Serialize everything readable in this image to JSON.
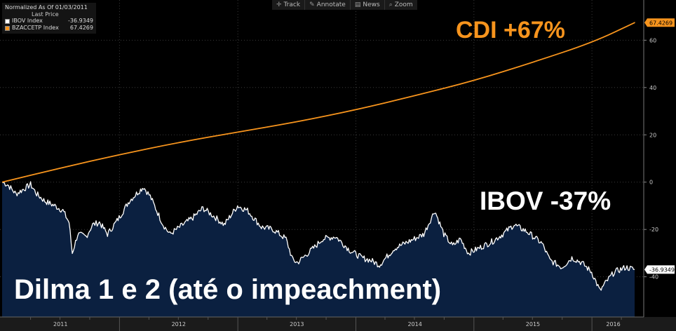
{
  "toolbar": {
    "items": [
      {
        "icon": "crosshair-icon",
        "glyph": "✛",
        "label": "Track"
      },
      {
        "icon": "pencil-icon",
        "glyph": "✎",
        "label": "Annotate"
      },
      {
        "icon": "news-icon",
        "glyph": "▤",
        "label": "News"
      },
      {
        "icon": "zoom-icon",
        "glyph": "⌕",
        "label": "Zoom"
      }
    ]
  },
  "legend": {
    "heading": "Normalized As Of 01/03/2011",
    "subheading": "Last Price",
    "items": [
      {
        "name": "IBOV Index",
        "value": "-36.9349",
        "color": "#ffffff"
      },
      {
        "name": "BZACCETP Index",
        "value": "67.4269",
        "color": "#f7941d"
      }
    ]
  },
  "annotations": {
    "cdi": "CDI +67%",
    "ibov": "IBOV -37%",
    "period": "Dilma 1 e 2 (até o impeachment)"
  },
  "colors": {
    "background": "#000000",
    "cdi_line": "#f7941d",
    "ibov_line": "#ffffff",
    "ibov_fill": "#0b2040",
    "axis_label_cdi_bg": "#f7941d",
    "axis_label_ibov_bg": "#ffffff"
  },
  "chart_data": {
    "type": "line",
    "x_range": [
      "2011-01-03",
      "2016-05-12"
    ],
    "x_ticks": [
      "2011",
      "2012",
      "2013",
      "2014",
      "2015",
      "2016"
    ],
    "y_ticks": [
      60,
      40,
      20,
      0,
      -20,
      -40
    ],
    "ylim": [
      -57,
      77
    ],
    "grid": true,
    "legend_position": "top-left",
    "series": [
      {
        "name": "IBOV Index",
        "last_price": -36.9349,
        "area_fill": true,
        "points": [
          [
            "2011-01-03",
            0
          ],
          [
            "2011-01-20",
            -1
          ],
          [
            "2011-02-15",
            -5
          ],
          [
            "2011-03-10",
            -3
          ],
          [
            "2011-04-01",
            -1
          ],
          [
            "2011-04-20",
            -5
          ],
          [
            "2011-05-15",
            -8
          ],
          [
            "2011-06-15",
            -10
          ],
          [
            "2011-07-10",
            -12
          ],
          [
            "2011-07-29",
            -17
          ],
          [
            "2011-08-08",
            -30
          ],
          [
            "2011-08-25",
            -22
          ],
          [
            "2011-09-20",
            -23
          ],
          [
            "2011-10-10",
            -18
          ],
          [
            "2011-10-31",
            -17
          ],
          [
            "2011-11-25",
            -22
          ],
          [
            "2011-12-31",
            -15
          ],
          [
            "2012-01-31",
            -8
          ],
          [
            "2012-02-29",
            -4
          ],
          [
            "2012-03-15",
            -2
          ],
          [
            "2012-04-05",
            -6
          ],
          [
            "2012-05-15",
            -18
          ],
          [
            "2012-06-05",
            -22
          ],
          [
            "2012-07-15",
            -18
          ],
          [
            "2012-08-15",
            -15
          ],
          [
            "2012-09-15",
            -11
          ],
          [
            "2012-10-15",
            -14
          ],
          [
            "2012-11-20",
            -18
          ],
          [
            "2012-12-31",
            -10
          ],
          [
            "2013-01-31",
            -12
          ],
          [
            "2013-03-15",
            -19
          ],
          [
            "2013-04-20",
            -20
          ],
          [
            "2013-05-30",
            -24
          ],
          [
            "2013-06-20",
            -33
          ],
          [
            "2013-07-05",
            -34
          ],
          [
            "2013-08-30",
            -27
          ],
          [
            "2013-09-20",
            -24
          ],
          [
            "2013-10-30",
            -23
          ],
          [
            "2013-12-15",
            -29
          ],
          [
            "2014-01-20",
            -32
          ],
          [
            "2014-02-15",
            -33
          ],
          [
            "2014-03-15",
            -35
          ],
          [
            "2014-04-30",
            -28
          ],
          [
            "2014-06-15",
            -25
          ],
          [
            "2014-07-30",
            -22
          ],
          [
            "2014-09-02",
            -12
          ],
          [
            "2014-09-30",
            -22
          ],
          [
            "2014-10-27",
            -27
          ],
          [
            "2014-11-20",
            -24
          ],
          [
            "2014-12-15",
            -30
          ],
          [
            "2015-01-15",
            -28
          ],
          [
            "2015-02-28",
            -25
          ],
          [
            "2015-03-31",
            -22
          ],
          [
            "2015-05-05",
            -18
          ],
          [
            "2015-06-15",
            -21
          ],
          [
            "2015-07-31",
            -26
          ],
          [
            "2015-08-24",
            -33
          ],
          [
            "2015-09-30",
            -36
          ],
          [
            "2015-10-31",
            -32
          ],
          [
            "2015-11-30",
            -34
          ],
          [
            "2015-12-31",
            -38
          ],
          [
            "2016-01-26",
            -46
          ],
          [
            "2016-02-15",
            -42
          ],
          [
            "2016-03-10",
            -38
          ],
          [
            "2016-04-15",
            -36
          ],
          [
            "2016-05-12",
            -36.9349
          ]
        ]
      },
      {
        "name": "BZACCETP Index",
        "last_price": 67.4269,
        "area_fill": false,
        "points": [
          [
            "2011-01-03",
            0
          ],
          [
            "2011-07-01",
            5.9
          ],
          [
            "2012-01-02",
            11.7
          ],
          [
            "2012-07-02",
            16.8
          ],
          [
            "2013-01-02",
            21.2
          ],
          [
            "2013-07-01",
            25.4
          ],
          [
            "2014-01-02",
            30.6
          ],
          [
            "2014-07-01",
            36.5
          ],
          [
            "2015-01-02",
            42.9
          ],
          [
            "2015-07-01",
            50.6
          ],
          [
            "2016-01-04",
            59.1
          ],
          [
            "2016-05-12",
            67.4269
          ]
        ]
      }
    ]
  }
}
